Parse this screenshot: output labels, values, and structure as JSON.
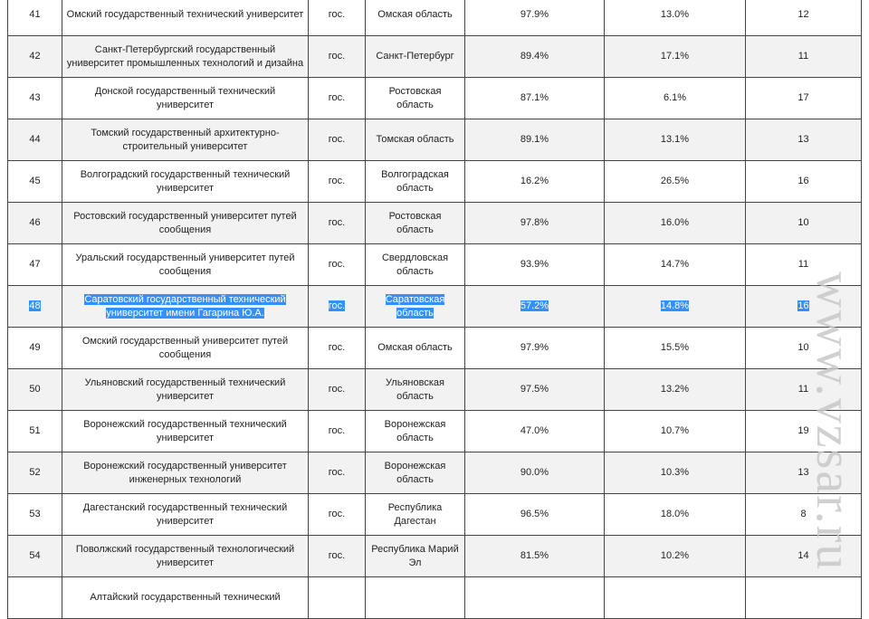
{
  "rows": [
    {
      "n": "41",
      "name": "Омский государственный технический университет",
      "type": "гос.",
      "region": "Омская область",
      "p1": "97.9%",
      "p2": "13.0%",
      "k": "12"
    },
    {
      "n": "42",
      "name": "Санкт-Петербургский государственный университет промышленных технологий и дизайна",
      "type": "гос.",
      "region": "Санкт-Петербург",
      "p1": "89.4%",
      "p2": "17.1%",
      "k": "11"
    },
    {
      "n": "43",
      "name": "Донской государственный технический университет",
      "type": "гос.",
      "region": "Ростовская область",
      "p1": "87.1%",
      "p2": "6.1%",
      "k": "17"
    },
    {
      "n": "44",
      "name": "Томский государственный архитектурно-строительный университет",
      "type": "гос.",
      "region": "Томская область",
      "p1": "89.1%",
      "p2": "13.1%",
      "k": "13"
    },
    {
      "n": "45",
      "name": "Волгоградский государственный технический университет",
      "type": "гос.",
      "region": "Волгоградская область",
      "p1": "16.2%",
      "p2": "26.5%",
      "k": "16"
    },
    {
      "n": "46",
      "name": "Ростовский государственный университет путей сообщения",
      "type": "гос.",
      "region": "Ростовская область",
      "p1": "97.8%",
      "p2": "16.0%",
      "k": "10"
    },
    {
      "n": "47",
      "name": "Уральский государственный университет путей сообщения",
      "type": "гос.",
      "region": "Свердловская область",
      "p1": "93.9%",
      "p2": "14.7%",
      "k": "11"
    },
    {
      "n": "48",
      "name": "Саратовский государственный технический университет имени Гагарина Ю.А.",
      "type": "гос.",
      "region": "Саратовская область",
      "p1": "57.2%",
      "p2": "14.8%",
      "k": "16",
      "selected": true
    },
    {
      "n": "49",
      "name": "Омский государственный университет путей сообщения",
      "type": "гос.",
      "region": "Омская область",
      "p1": "97.9%",
      "p2": "15.5%",
      "k": "10"
    },
    {
      "n": "50",
      "name": "Ульяновский государственный технический университет",
      "type": "гос.",
      "region": "Ульяновская область",
      "p1": "97.5%",
      "p2": "13.2%",
      "k": "11"
    },
    {
      "n": "51",
      "name": "Воронежский государственный технический университет",
      "type": "гос.",
      "region": "Воронежская область",
      "p1": "47.0%",
      "p2": "10.7%",
      "k": "19"
    },
    {
      "n": "52",
      "name": "Воронежский государственный университет инженерных технологий",
      "type": "гос.",
      "region": "Воронежская область",
      "p1": "90.0%",
      "p2": "10.3%",
      "k": "13"
    },
    {
      "n": "53",
      "name": "Дагестанский государственный технический университет",
      "type": "гос.",
      "region": "Республика Дагестан",
      "p1": "96.5%",
      "p2": "18.0%",
      "k": "8"
    },
    {
      "n": "54",
      "name": "Поволжский государственный технологический университет",
      "type": "гос.",
      "region": "Республика Марий Эл",
      "p1": "81.5%",
      "p2": "10.2%",
      "k": "14"
    },
    {
      "n": "",
      "name": "Алтайский государственный технический",
      "type": "",
      "region": "",
      "p1": "",
      "p2": "",
      "k": ""
    }
  ],
  "watermark": "www.vzsar.ru",
  "colors": {
    "selection": "#3390ff",
    "row_alt": "#f2f2f2"
  }
}
